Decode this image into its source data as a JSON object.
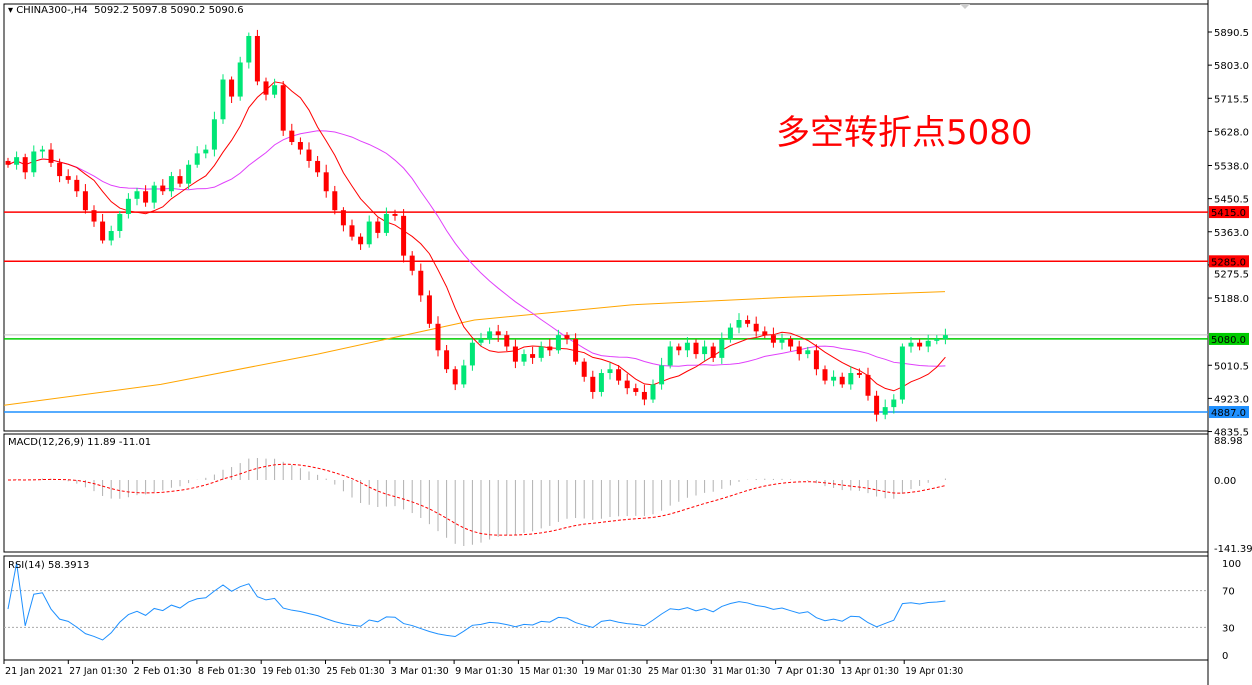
{
  "header": {
    "symbol": "CHINA300-,H4",
    "ohlc": "5092.2 5097.8 5090.2 5090.6"
  },
  "annotation": "多空转折点5080",
  "colors": {
    "bull": "#00e676",
    "bear": "#ff0000",
    "ma_fast": "#ff0000",
    "ma_slow": "#e040fb",
    "ma_long": "#ffa500",
    "level_red": "#ff0000",
    "level_green": "#00cc00",
    "level_blue": "#1e90ff"
  },
  "chart_data": {
    "type": "candlestick",
    "price_ticks": [
      "5890.5",
      "5803.0",
      "5715.5",
      "5628.0",
      "5538.0",
      "5450.5",
      "5363.0",
      "5275.5",
      "5188.0",
      "5010.5",
      "4923.0",
      "4835.5"
    ],
    "ylim": [
      4835.5,
      5890.5
    ],
    "levels": [
      {
        "value": 5415.0,
        "label": "5415.0",
        "color": "red"
      },
      {
        "value": 5285.0,
        "label": "5285.0",
        "color": "red"
      },
      {
        "value": 5080.0,
        "label": "5080.0",
        "color": "green"
      },
      {
        "value": 4887.0,
        "label": "4887.0",
        "color": "blue"
      }
    ],
    "closes": [
      5540,
      5560,
      5520,
      5575,
      5580,
      5545,
      5510,
      5500,
      5470,
      5420,
      5390,
      5340,
      5365,
      5410,
      5450,
      5470,
      5440,
      5485,
      5470,
      5510,
      5490,
      5540,
      5570,
      5580,
      5660,
      5765,
      5720,
      5810,
      5880,
      5760,
      5725,
      5750,
      5630,
      5600,
      5580,
      5550,
      5520,
      5470,
      5420,
      5380,
      5350,
      5330,
      5390,
      5360,
      5410,
      5405,
      5300,
      5260,
      5195,
      5120,
      5050,
      5000,
      4960,
      5010,
      5070,
      5080,
      5100,
      5090,
      5060,
      5020,
      5040,
      5030,
      5060,
      5050,
      5090,
      5080,
      5020,
      4980,
      4940,
      4990,
      5000,
      4970,
      4950,
      4940,
      4920,
      4960,
      5010,
      5060,
      5050,
      5070,
      5040,
      5060,
      5030,
      5080,
      5110,
      5130,
      5120,
      5100,
      5090,
      5070,
      5080,
      5060,
      5040,
      5050,
      5000,
      4970,
      4980,
      4960,
      4990,
      4985,
      4930,
      4880,
      4900,
      4920,
      5060,
      5070,
      5060,
      5075,
      5080,
      5090
    ],
    "ma_long": [
      4905,
      4960,
      5040,
      5130,
      5170,
      5190,
      5205
    ],
    "x_ticks": [
      "21 Jan 2021",
      "27 Jan 01:30",
      "2 Feb 01:30",
      "8 Feb 01:30",
      "19 Feb 01:30",
      "25 Feb 01:30",
      "3 Mar 01:30",
      "9 Mar 01:30",
      "15 Mar 01:30",
      "19 Mar 01:30",
      "25 Mar 01:30",
      "31 Mar 01:30",
      "7 Apr 01:30",
      "13 Apr 01:30",
      "19 Apr 01:30"
    ],
    "macd": {
      "label": "MACD(12,26,9) 11.89 -11.01",
      "ticks": [
        "88.98",
        "0.00",
        "-141.39"
      ],
      "ylim": [
        -141.39,
        88.98
      ]
    },
    "rsi": {
      "label": "RSI(14) 58.3913",
      "ticks": [
        "100",
        "70",
        "30",
        "0"
      ],
      "ylim": [
        0,
        100
      ],
      "levels": [
        70,
        30
      ]
    }
  }
}
